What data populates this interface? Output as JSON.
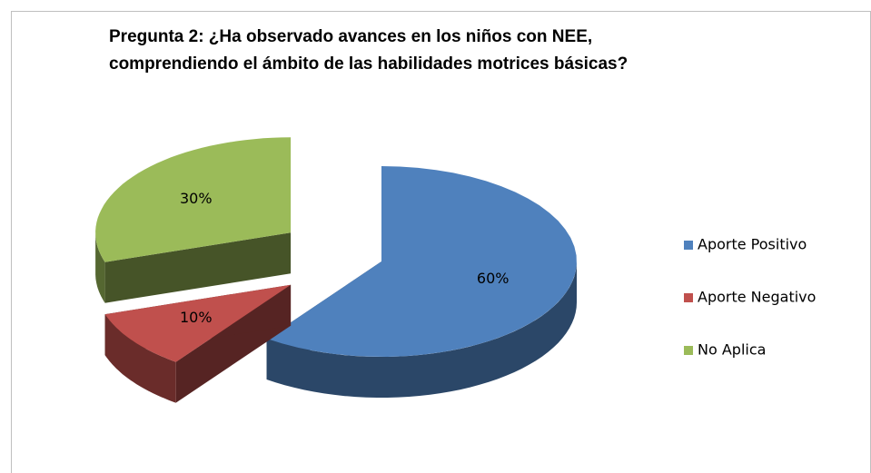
{
  "chart_data": {
    "type": "pie",
    "title": "Pregunta 2: ¿Ha  observado avances en los niños con NEE, comprendiendo el ámbito de las habilidades motrices básicas?",
    "categories": [
      "Aporte Positivo",
      "Aporte Negativo",
      "No Aplica"
    ],
    "values": [
      60,
      10,
      30
    ],
    "value_labels": [
      "60%",
      "10%",
      "30%"
    ],
    "colors": [
      "#4f81bd",
      "#c0504d",
      "#9bbb59"
    ],
    "legend": "right"
  }
}
